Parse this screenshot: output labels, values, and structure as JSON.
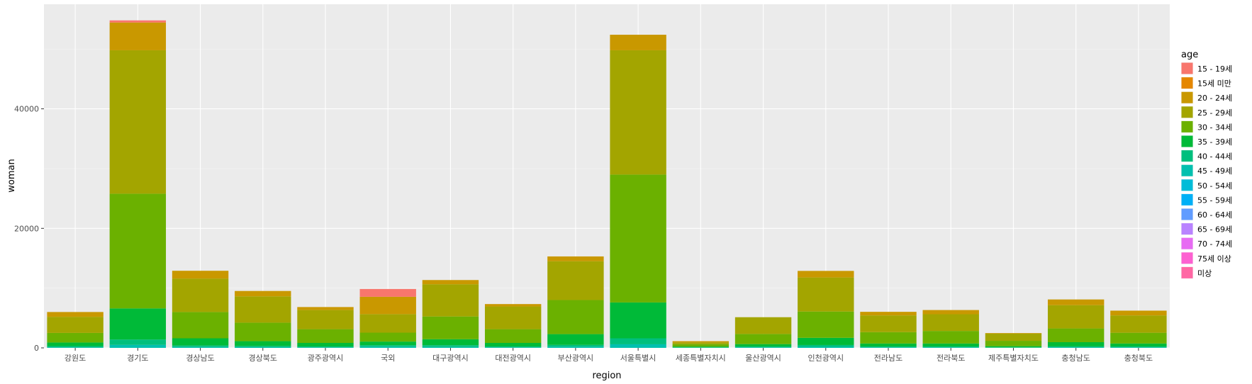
{
  "chart_data": {
    "type": "bar",
    "stacked": true,
    "xlabel": "region",
    "ylabel": "woman",
    "ylim": [
      0,
      55000
    ],
    "yticks": [
      0,
      20000,
      40000
    ],
    "ytick_labels": [
      "0",
      "20000",
      "40000"
    ],
    "grid": true,
    "legend_title": "age",
    "legend_position": "right",
    "categories": [
      "강원도",
      "경기도",
      "경상남도",
      "경상북도",
      "광주광역시",
      "국외",
      "대구광역시",
      "대전광역시",
      "부산광역시",
      "서울특별시",
      "세종특별자치시",
      "울산광역시",
      "인천광역시",
      "전라남도",
      "전라북도",
      "제주특별자치도",
      "충청남도",
      "충청북도"
    ],
    "series": [
      {
        "name": "15 - 19세",
        "color": "#F8766D",
        "values": [
          0,
          350,
          0,
          0,
          0,
          1300,
          0,
          0,
          0,
          0,
          0,
          0,
          0,
          0,
          0,
          0,
          0,
          0
        ]
      },
      {
        "name": "15세 미만",
        "color": "#E58700",
        "values": [
          0,
          0,
          0,
          0,
          0,
          0,
          0,
          0,
          0,
          0,
          0,
          0,
          0,
          0,
          0,
          0,
          0,
          0
        ]
      },
      {
        "name": "20 - 24세",
        "color": "#C99800",
        "values": [
          800,
          4650,
          1300,
          900,
          500,
          2900,
          700,
          400,
          800,
          2600,
          200,
          0,
          1100,
          600,
          700,
          100,
          950,
          800
        ]
      },
      {
        "name": "25 - 29세",
        "color": "#A3A500",
        "values": [
          2700,
          24000,
          5600,
          4400,
          3200,
          3100,
          5400,
          3800,
          6500,
          20800,
          300,
          2800,
          5700,
          2800,
          2800,
          1200,
          3900,
          2900
        ]
      },
      {
        "name": "30 - 34세",
        "color": "#6BB100",
        "values": [
          1600,
          19200,
          4400,
          3100,
          2300,
          1500,
          3800,
          2300,
          5700,
          21400,
          400,
          1700,
          4400,
          1900,
          2100,
          900,
          2300,
          1800
        ]
      },
      {
        "name": "35 - 39세",
        "color": "#00BA38",
        "values": [
          600,
          5200,
          1200,
          800,
          600,
          600,
          1000,
          600,
          1800,
          6000,
          150,
          400,
          1200,
          500,
          500,
          200,
          700,
          500
        ]
      },
      {
        "name": "40 - 44세",
        "color": "#00BF7D",
        "values": [
          200,
          900,
          250,
          200,
          150,
          250,
          300,
          150,
          300,
          1000,
          50,
          150,
          300,
          150,
          150,
          50,
          150,
          150
        ]
      },
      {
        "name": "45 - 49세",
        "color": "#00C0AF",
        "values": [
          100,
          500,
          150,
          120,
          80,
          200,
          150,
          80,
          200,
          600,
          20,
          80,
          180,
          80,
          80,
          30,
          100,
          80
        ]
      },
      {
        "name": "50 - 54세",
        "color": "#00BCD8",
        "values": [
          0,
          0,
          0,
          0,
          0,
          0,
          0,
          0,
          0,
          0,
          0,
          0,
          0,
          0,
          0,
          0,
          0,
          0
        ]
      },
      {
        "name": "55 - 59세",
        "color": "#00B0F6",
        "values": [
          0,
          0,
          0,
          0,
          0,
          0,
          0,
          0,
          0,
          0,
          0,
          0,
          0,
          0,
          0,
          0,
          0,
          0
        ]
      },
      {
        "name": "60 - 64세",
        "color": "#619CFF",
        "values": [
          0,
          0,
          0,
          0,
          0,
          0,
          0,
          0,
          0,
          0,
          0,
          0,
          0,
          0,
          0,
          0,
          0,
          0
        ]
      },
      {
        "name": "65 - 69세",
        "color": "#B983FF",
        "values": [
          0,
          0,
          0,
          0,
          0,
          0,
          0,
          0,
          0,
          0,
          0,
          0,
          0,
          0,
          0,
          0,
          0,
          0
        ]
      },
      {
        "name": "70 - 74세",
        "color": "#E76BF3",
        "values": [
          0,
          0,
          0,
          0,
          0,
          0,
          0,
          0,
          0,
          0,
          0,
          0,
          0,
          0,
          0,
          0,
          0,
          0
        ]
      },
      {
        "name": "75세 이상",
        "color": "#FD61D1",
        "values": [
          0,
          0,
          0,
          0,
          0,
          0,
          0,
          0,
          0,
          0,
          0,
          0,
          0,
          0,
          0,
          0,
          0,
          0
        ]
      },
      {
        "name": "미상",
        "color": "#FF67A4",
        "values": [
          0,
          0,
          0,
          0,
          0,
          0,
          0,
          0,
          0,
          0,
          0,
          0,
          0,
          0,
          0,
          0,
          0,
          0
        ]
      }
    ]
  }
}
